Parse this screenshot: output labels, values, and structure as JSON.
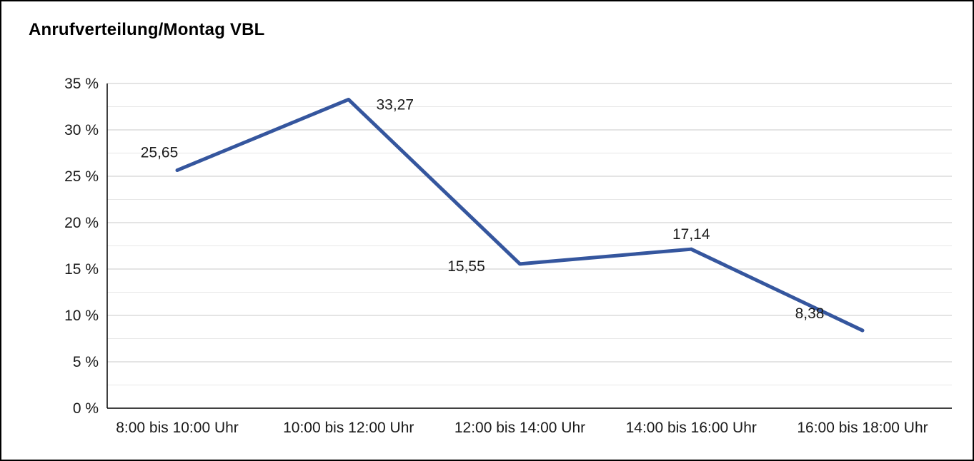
{
  "title": "Anrufverteilung/Montag VBL",
  "chart_data": {
    "type": "line",
    "title": "Anrufverteilung/Montag VBL",
    "categories": [
      "8:00 bis 10:00 Uhr",
      "10:00 bis 12:00 Uhr",
      "12:00 bis 14:00 Uhr",
      "14:00 bis 16:00 Uhr",
      "16:00 bis 18:00 Uhr"
    ],
    "values": [
      25.65,
      33.27,
      15.55,
      17.14,
      8.38
    ],
    "value_labels": [
      "25,65",
      "33,27",
      "15,55",
      "17,14",
      "8,38"
    ],
    "xlabel": "",
    "ylabel": "",
    "ylim": [
      0,
      35
    ],
    "y_tick_step": 5,
    "y_tick_labels": [
      "0 %",
      "5 %",
      "10 %",
      "15 %",
      "20 %",
      "25 %",
      "30 %",
      "35 %"
    ],
    "grid": "horizontal, major every 5% with lighter minor lines every 2.5%",
    "legend": "none",
    "line_color": "#35569E",
    "axis_color": "#000000",
    "major_grid_color": "#c9c9c9",
    "minor_grid_color": "#e7e7e7",
    "text_color": "#1a1a1a"
  }
}
